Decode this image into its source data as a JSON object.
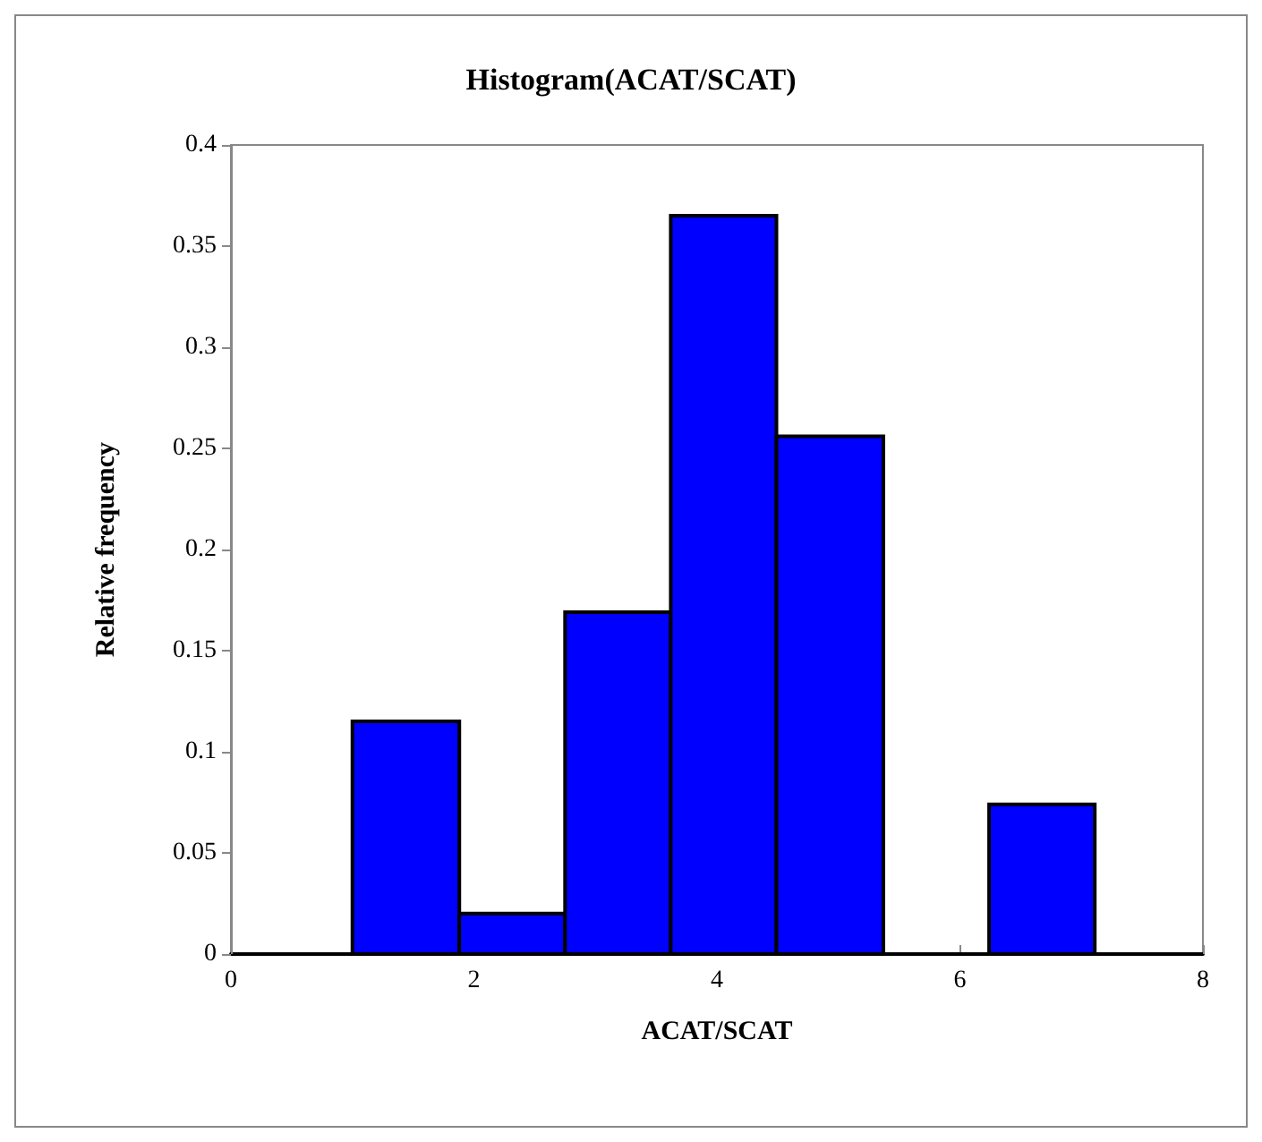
{
  "chart_data": {
    "type": "histogram",
    "title": "Histogram(ACAT/SCAT)",
    "xlabel": "ACAT/SCAT",
    "ylabel": "Relative frequency",
    "bins": [
      1.0,
      1.88,
      2.75,
      3.62,
      4.49,
      5.37,
      6.24,
      7.11
    ],
    "values": [
      0.115,
      0.02,
      0.169,
      0.365,
      0.256,
      0,
      0.074
    ],
    "color": "#0000ff",
    "xlim": [
      0,
      8
    ],
    "xticks": [
      0,
      2,
      4,
      6,
      8
    ],
    "ylim": [
      0,
      0.4
    ],
    "yticks": [
      0,
      0.05,
      0.1,
      0.15,
      0.2,
      0.25,
      0.3,
      0.35,
      0.4
    ],
    "grid": false
  }
}
